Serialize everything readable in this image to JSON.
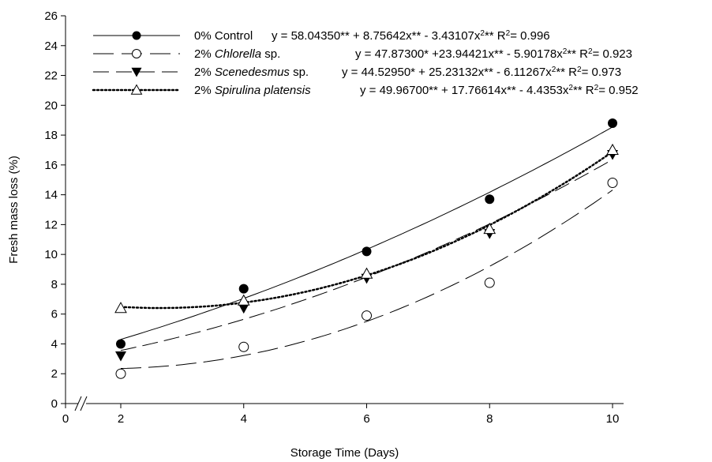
{
  "chart_data": {
    "type": "scatter",
    "xlabel": "Storage Time (Days)",
    "ylabel": "Fresh mass loss (%)",
    "xlim": [
      0,
      10.5
    ],
    "ylim": [
      0,
      26
    ],
    "x_ticks": [
      "0",
      "2",
      "4",
      "6",
      "8",
      "10"
    ],
    "y_ticks": [
      "0",
      "2",
      "4",
      "6",
      "8",
      "10",
      "12",
      "14",
      "16",
      "18",
      "20",
      "22",
      "24",
      "26"
    ],
    "axis_break": "between 0 and 2 on x axis",
    "grid": false,
    "legend_position": "top-left",
    "series": [
      {
        "name": "0% Control",
        "name_parts": {
          "prefix": "0% ",
          "italic": "",
          "suffix": "Control"
        },
        "marker": "filled-circle",
        "line_style": "solid",
        "x": [
          2,
          4,
          6,
          8,
          10
        ],
        "y": [
          4.0,
          7.7,
          10.2,
          13.7,
          18.8
        ],
        "equation": {
          "main": "y = 58.04350** + 8.75642x** - 3.43107x",
          "sup": "2",
          "rest": "** R",
          "r_sup": "2",
          "r_val": "= 0.996"
        }
      },
      {
        "name": "2% Chlorella sp.",
        "name_parts": {
          "prefix": "2% ",
          "italic": "Chlorella",
          "suffix": " sp."
        },
        "marker": "open-circle",
        "line_style": "long-dash",
        "x": [
          2,
          4,
          6,
          8,
          10
        ],
        "y": [
          2.0,
          3.8,
          5.9,
          8.1,
          14.8
        ],
        "equation": {
          "main": "y = 47.87300* +23.94421x** - 5.90178x",
          "sup": "2",
          "rest": "** R",
          "r_sup": "2",
          "r_val": "= 0.923"
        }
      },
      {
        "name": "2% Scenedesmus sp.",
        "name_parts": {
          "prefix": "2% ",
          "italic": "Scenedesmus",
          "suffix": " sp."
        },
        "marker": "filled-triangle-down",
        "line_style": "medium-dash",
        "x": [
          2,
          4,
          6,
          8,
          10
        ],
        "y": [
          3.2,
          6.4,
          8.4,
          11.4,
          16.7
        ],
        "equation": {
          "main": "y = 44.52950* + 25.23132x** - 6.11267x",
          "sup": "2",
          "rest": "** R",
          "r_sup": "2",
          "r_val": "= 0.973"
        }
      },
      {
        "name": "2% Spirulina platensis",
        "name_parts": {
          "prefix": "2% ",
          "italic": "Spirulina platensis",
          "suffix": ""
        },
        "marker": "open-triangle-up",
        "line_style": "dotted",
        "x": [
          2,
          4,
          6,
          8,
          10
        ],
        "y": [
          6.4,
          6.9,
          8.7,
          11.7,
          17.0
        ],
        "equation": {
          "main": "y = 49.96700** + 17.76614x** - 4.4353x",
          "sup": "2",
          "rest": "** R",
          "r_sup": "2",
          "r_val": "= 0.952"
        }
      }
    ]
  }
}
